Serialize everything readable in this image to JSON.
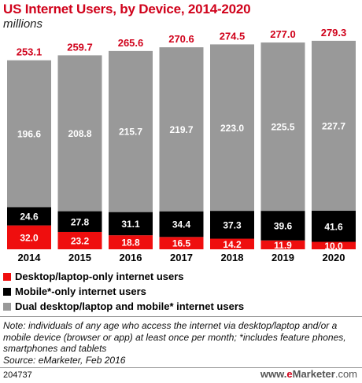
{
  "header": {
    "title": "US Internet Users, by Device, 2014-2020",
    "subtitle": "millions"
  },
  "colors": {
    "accent_red": "#d0021b",
    "desktop": "#ef0e0e",
    "mobile": "#000000",
    "dual": "#999999",
    "total_label": "#d0021b"
  },
  "chart_data": {
    "type": "bar",
    "stacked": true,
    "categories": [
      "2014",
      "2015",
      "2016",
      "2017",
      "2018",
      "2019",
      "2020"
    ],
    "series": [
      {
        "name": "Desktop/laptop-only internet users",
        "values": [
          32.0,
          23.2,
          18.8,
          16.5,
          14.2,
          11.9,
          10.0
        ]
      },
      {
        "name": "Mobile*-only internet users",
        "values": [
          24.6,
          27.8,
          31.1,
          34.4,
          37.3,
          39.6,
          41.6
        ]
      },
      {
        "name": "Dual desktop/laptop and mobile* internet users",
        "values": [
          196.6,
          208.8,
          215.7,
          219.7,
          223.0,
          225.5,
          227.7
        ]
      }
    ],
    "totals": [
      253.1,
      259.7,
      265.6,
      270.6,
      274.5,
      277.0,
      279.3
    ],
    "value_labels": {
      "desktop": [
        "32.0",
        "23.2",
        "18.8",
        "16.5",
        "14.2",
        "11.9",
        "10.0"
      ],
      "mobile": [
        "24.6",
        "27.8",
        "31.1",
        "34.4",
        "37.3",
        "39.6",
        "41.6"
      ],
      "dual": [
        "196.6",
        "208.8",
        "215.7",
        "219.7",
        "223.0",
        "225.5",
        "227.7"
      ],
      "totals": [
        "253.1",
        "259.7",
        "265.6",
        "270.6",
        "274.5",
        "277.0",
        "279.3"
      ]
    },
    "ylim": [
      0,
      300
    ],
    "grid": false,
    "legend_position": "bottom"
  },
  "legend": [
    {
      "label": "Desktop/laptop-only internet users",
      "color": "#ef0e0e"
    },
    {
      "label": "Mobile*-only internet users",
      "color": "#000000"
    },
    {
      "label": "Dual desktop/laptop and mobile* internet users",
      "color": "#999999"
    }
  ],
  "footer": {
    "note": "Note: individuals of any age who access the internet via desktop/laptop and/or a mobile device (browser or app) at least once per month; *includes feature phones, smartphones and tablets",
    "source": "Source: eMarketer, Feb 2016",
    "chart_id": "204737",
    "logo_www": "www.",
    "logo_e": "e",
    "logo_main": "Marketer",
    "logo_com": ".com"
  }
}
